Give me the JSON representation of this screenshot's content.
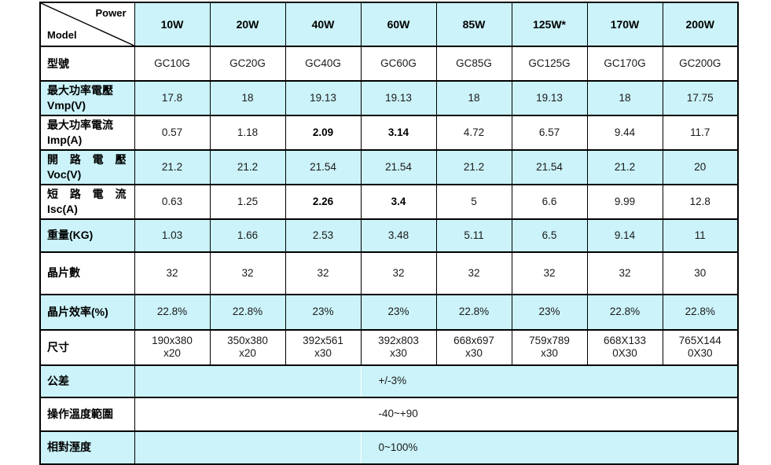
{
  "table": {
    "corner": {
      "top_label": "Power",
      "bottom_label": "Model"
    },
    "columns": [
      "10W",
      "20W",
      "40W",
      "60W",
      "85W",
      "125W*",
      "170W",
      "200W"
    ],
    "rows": [
      {
        "name": "model",
        "label": "型號",
        "values": [
          "GC10G",
          "GC20G",
          "GC40G",
          "GC60G",
          "GC85G",
          "GC125G",
          "GC170G",
          "GC200G"
        ]
      },
      {
        "name": "vmp",
        "label": "最大功率電壓",
        "sublabel": "Vmp(V)",
        "values": [
          "17.8",
          "18",
          "19.13",
          "19.13",
          "18",
          "19.13",
          "18",
          "17.75"
        ]
      },
      {
        "name": "imp",
        "label": "最大功率電流",
        "sublabel": "Imp(A)",
        "values": [
          "0.57",
          "1.18",
          "2.09",
          "3.14",
          "4.72",
          "6.57",
          "9.44",
          "11.7"
        ],
        "bold_cols": [
          2,
          3
        ]
      },
      {
        "name": "voc",
        "label": "開 路 電 壓",
        "sublabel": "Voc(V)",
        "values": [
          "21.2",
          "21.2",
          "21.54",
          "21.54",
          "21.2",
          "21.54",
          "21.2",
          "20"
        ]
      },
      {
        "name": "isc",
        "label": "短 路 電 流",
        "sublabel": "Isc(A)",
        "values": [
          "0.63",
          "1.25",
          "2.26",
          "3.4",
          "5",
          "6.6",
          "9.99",
          "12.8"
        ],
        "bold_cols": [
          2,
          3
        ]
      },
      {
        "name": "weight",
        "label": "重量(KG)",
        "values": [
          "1.03",
          "1.66",
          "2.53",
          "3.48",
          "5.11",
          "6.5",
          "9.14",
          "11"
        ]
      },
      {
        "name": "cell-count",
        "label": "晶片數",
        "values": [
          "32",
          "32",
          "32",
          "32",
          "32",
          "32",
          "32",
          "30"
        ]
      },
      {
        "name": "cell-efficiency",
        "label": "晶片效率(%)",
        "values": [
          "22.8%",
          "22.8%",
          "23%",
          "23%",
          "22.8%",
          "23%",
          "22.8%",
          "22.8%"
        ]
      },
      {
        "name": "dimensions",
        "label": "尺寸",
        "values": [
          "190x380\nx20",
          "350x380\nx20",
          "392x561\nx30",
          "392x803\nx30",
          "668x697\nx30",
          "759x789\nx30",
          "668X133\n0X30",
          "765X144\n0X30"
        ]
      },
      {
        "name": "tolerance",
        "label": "公差",
        "merged_value": "+/-3%"
      },
      {
        "name": "operating-temp",
        "label": "操作溫度範圍",
        "merged_value": "-40~+90"
      },
      {
        "name": "humidity",
        "label": "相對溼度",
        "merged_value": "0~100%"
      }
    ],
    "colors": {
      "shaded_row": "#CBF3F9",
      "border": "#000000"
    }
  }
}
